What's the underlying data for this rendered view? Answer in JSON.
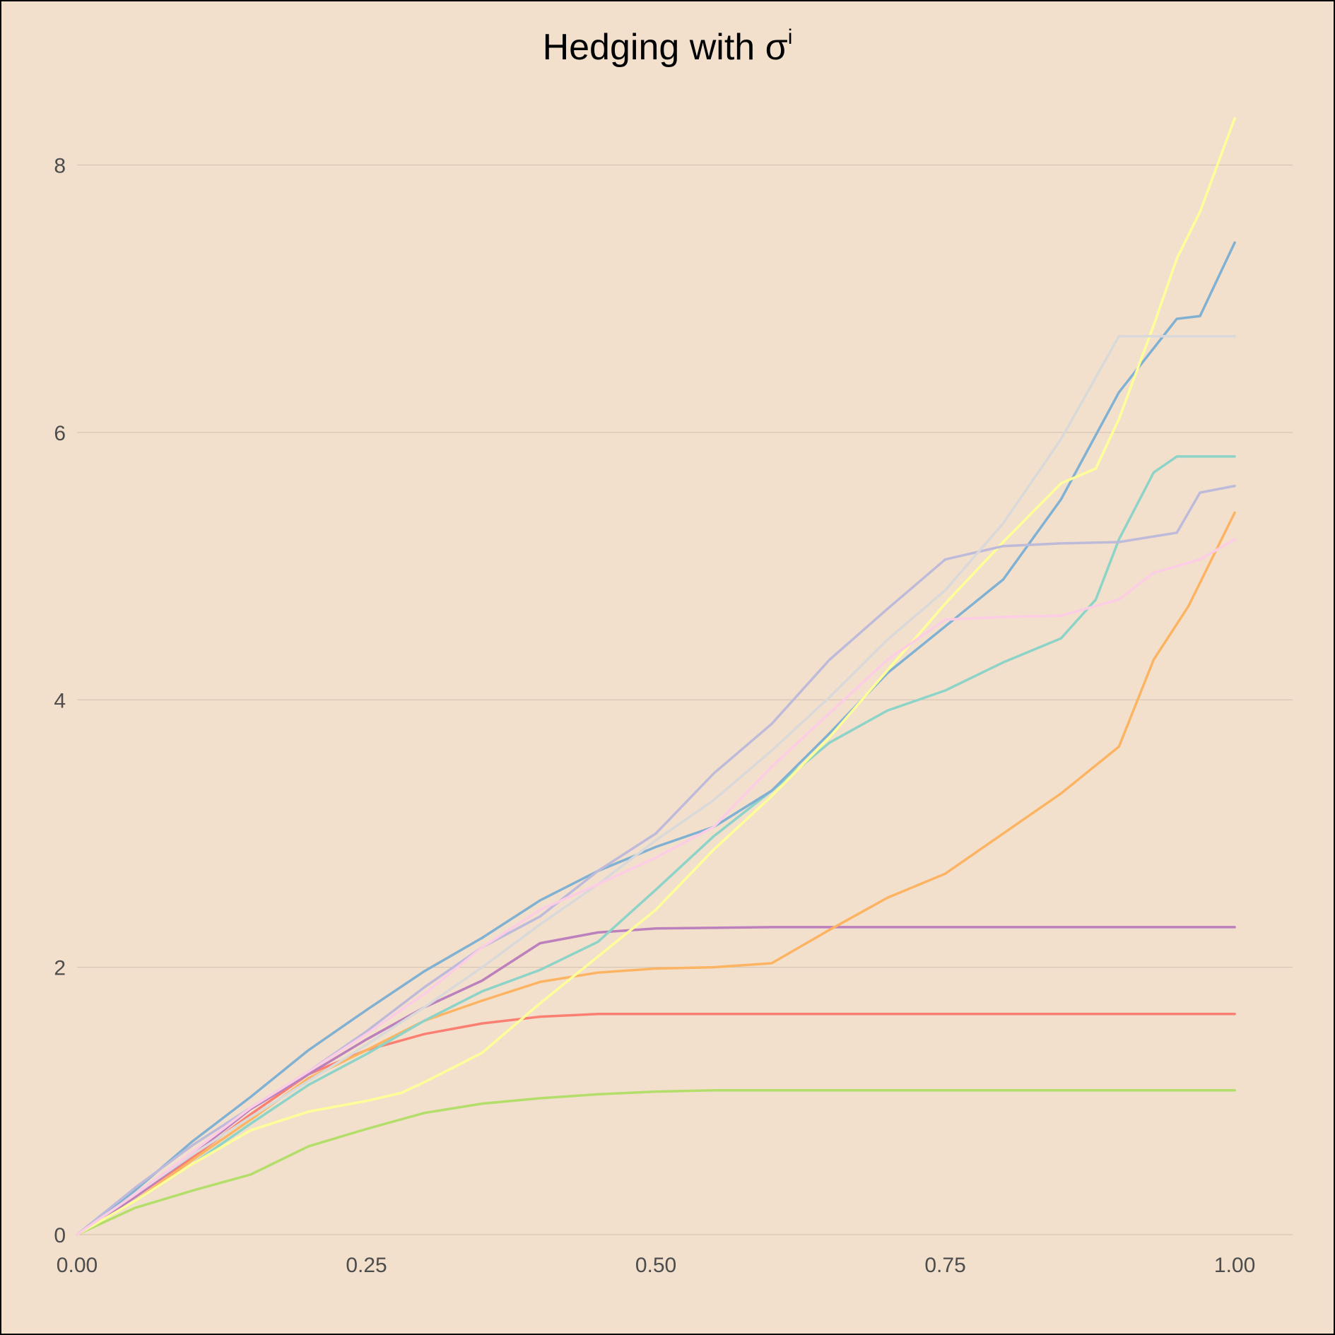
{
  "chart_data": {
    "type": "line",
    "title": "Hedging with σ",
    "title_superscript": "i",
    "xlabel": "",
    "ylabel": "",
    "xlim": [
      0,
      1.05
    ],
    "ylim": [
      0,
      8.6
    ],
    "x_ticks": [
      "0.00",
      "0.25",
      "0.50",
      "0.75",
      "1.00"
    ],
    "x_tick_values": [
      0,
      0.25,
      0.5,
      0.75,
      1.0
    ],
    "y_ticks": [
      "0",
      "2",
      "4",
      "6",
      "8"
    ],
    "y_tick_values": [
      0,
      2,
      4,
      6,
      8
    ],
    "grid": "horizontal",
    "legend": "none",
    "background": "#f2e0cd",
    "gridline_color": "#d8c6b4",
    "series": [
      {
        "color": "#b3de69",
        "points": [
          [
            0,
            0
          ],
          [
            0.05,
            0.2
          ],
          [
            0.1,
            0.33
          ],
          [
            0.15,
            0.45
          ],
          [
            0.2,
            0.66
          ],
          [
            0.25,
            0.79
          ],
          [
            0.3,
            0.91
          ],
          [
            0.35,
            0.98
          ],
          [
            0.4,
            1.02
          ],
          [
            0.45,
            1.05
          ],
          [
            0.5,
            1.07
          ],
          [
            0.55,
            1.08
          ],
          [
            0.6,
            1.08
          ],
          [
            0.8,
            1.08
          ],
          [
            1.0,
            1.08
          ]
        ]
      },
      {
        "color": "#fb8072",
        "points": [
          [
            0,
            0
          ],
          [
            0.05,
            0.28
          ],
          [
            0.1,
            0.58
          ],
          [
            0.15,
            0.9
          ],
          [
            0.2,
            1.2
          ],
          [
            0.25,
            1.38
          ],
          [
            0.3,
            1.5
          ],
          [
            0.35,
            1.58
          ],
          [
            0.4,
            1.63
          ],
          [
            0.45,
            1.65
          ],
          [
            0.5,
            1.65
          ],
          [
            0.7,
            1.65
          ],
          [
            1.0,
            1.65
          ]
        ]
      },
      {
        "color": "#bc80bd",
        "points": [
          [
            0,
            0
          ],
          [
            0.05,
            0.28
          ],
          [
            0.1,
            0.6
          ],
          [
            0.15,
            0.94
          ],
          [
            0.2,
            1.2
          ],
          [
            0.25,
            1.46
          ],
          [
            0.3,
            1.7
          ],
          [
            0.35,
            1.9
          ],
          [
            0.4,
            2.18
          ],
          [
            0.45,
            2.26
          ],
          [
            0.5,
            2.29
          ],
          [
            0.6,
            2.3
          ],
          [
            0.75,
            2.3
          ],
          [
            1.0,
            2.3
          ]
        ]
      },
      {
        "color": "#fdb462",
        "points": [
          [
            0,
            0
          ],
          [
            0.05,
            0.25
          ],
          [
            0.1,
            0.56
          ],
          [
            0.15,
            0.86
          ],
          [
            0.2,
            1.17
          ],
          [
            0.25,
            1.38
          ],
          [
            0.3,
            1.6
          ],
          [
            0.35,
            1.75
          ],
          [
            0.4,
            1.89
          ],
          [
            0.45,
            1.96
          ],
          [
            0.5,
            1.99
          ],
          [
            0.55,
            2.0
          ],
          [
            0.6,
            2.03
          ],
          [
            0.65,
            2.28
          ],
          [
            0.7,
            2.52
          ],
          [
            0.75,
            2.7
          ],
          [
            0.8,
            3.0
          ],
          [
            0.85,
            3.3
          ],
          [
            0.9,
            3.65
          ],
          [
            0.93,
            4.3
          ],
          [
            0.96,
            4.7
          ],
          [
            0.98,
            5.05
          ],
          [
            1.0,
            5.4
          ]
        ]
      },
      {
        "color": "#8dd3c7",
        "points": [
          [
            0,
            0
          ],
          [
            0.05,
            0.25
          ],
          [
            0.1,
            0.53
          ],
          [
            0.15,
            0.83
          ],
          [
            0.2,
            1.12
          ],
          [
            0.25,
            1.35
          ],
          [
            0.3,
            1.6
          ],
          [
            0.35,
            1.82
          ],
          [
            0.4,
            1.98
          ],
          [
            0.45,
            2.19
          ],
          [
            0.5,
            2.58
          ],
          [
            0.55,
            2.98
          ],
          [
            0.6,
            3.32
          ],
          [
            0.65,
            3.68
          ],
          [
            0.7,
            3.92
          ],
          [
            0.75,
            4.07
          ],
          [
            0.8,
            4.28
          ],
          [
            0.85,
            4.46
          ],
          [
            0.88,
            4.75
          ],
          [
            0.9,
            5.2
          ],
          [
            0.93,
            5.7
          ],
          [
            0.95,
            5.82
          ],
          [
            1.0,
            5.82
          ]
        ]
      },
      {
        "color": "#80b1d3",
        "points": [
          [
            0,
            0
          ],
          [
            0.05,
            0.33
          ],
          [
            0.1,
            0.7
          ],
          [
            0.15,
            1.03
          ],
          [
            0.2,
            1.38
          ],
          [
            0.25,
            1.68
          ],
          [
            0.3,
            1.97
          ],
          [
            0.35,
            2.22
          ],
          [
            0.4,
            2.5
          ],
          [
            0.45,
            2.72
          ],
          [
            0.5,
            2.9
          ],
          [
            0.55,
            3.05
          ],
          [
            0.6,
            3.32
          ],
          [
            0.65,
            3.75
          ],
          [
            0.7,
            4.2
          ],
          [
            0.75,
            4.55
          ],
          [
            0.8,
            4.9
          ],
          [
            0.85,
            5.5
          ],
          [
            0.9,
            6.3
          ],
          [
            0.95,
            6.85
          ],
          [
            0.97,
            6.87
          ],
          [
            1.0,
            7.42
          ]
        ]
      },
      {
        "color": "#ffff99",
        "points": [
          [
            0,
            0
          ],
          [
            0.05,
            0.25
          ],
          [
            0.1,
            0.53
          ],
          [
            0.15,
            0.78
          ],
          [
            0.2,
            0.92
          ],
          [
            0.25,
            1.0
          ],
          [
            0.28,
            1.06
          ],
          [
            0.3,
            1.14
          ],
          [
            0.35,
            1.36
          ],
          [
            0.4,
            1.73
          ],
          [
            0.45,
            2.08
          ],
          [
            0.5,
            2.43
          ],
          [
            0.55,
            2.88
          ],
          [
            0.6,
            3.28
          ],
          [
            0.65,
            3.72
          ],
          [
            0.7,
            4.22
          ],
          [
            0.75,
            4.72
          ],
          [
            0.8,
            5.18
          ],
          [
            0.85,
            5.62
          ],
          [
            0.88,
            5.73
          ],
          [
            0.9,
            6.1
          ],
          [
            0.93,
            6.8
          ],
          [
            0.95,
            7.3
          ],
          [
            0.97,
            7.65
          ],
          [
            1.0,
            8.35
          ]
        ]
      },
      {
        "color": "#bebada",
        "points": [
          [
            0,
            0
          ],
          [
            0.05,
            0.35
          ],
          [
            0.1,
            0.67
          ],
          [
            0.15,
            0.95
          ],
          [
            0.2,
            1.22
          ],
          [
            0.25,
            1.52
          ],
          [
            0.3,
            1.85
          ],
          [
            0.35,
            2.15
          ],
          [
            0.4,
            2.38
          ],
          [
            0.45,
            2.72
          ],
          [
            0.5,
            3.0
          ],
          [
            0.55,
            3.45
          ],
          [
            0.6,
            3.82
          ],
          [
            0.65,
            4.3
          ],
          [
            0.7,
            4.68
          ],
          [
            0.75,
            5.05
          ],
          [
            0.8,
            5.15
          ],
          [
            0.85,
            5.17
          ],
          [
            0.9,
            5.18
          ],
          [
            0.95,
            5.25
          ],
          [
            0.97,
            5.55
          ],
          [
            1.0,
            5.6
          ]
        ]
      },
      {
        "color": "#d9d9d9",
        "points": [
          [
            0,
            0
          ],
          [
            0.05,
            0.3
          ],
          [
            0.1,
            0.6
          ],
          [
            0.15,
            0.88
          ],
          [
            0.2,
            1.15
          ],
          [
            0.25,
            1.42
          ],
          [
            0.3,
            1.7
          ],
          [
            0.35,
            2.0
          ],
          [
            0.4,
            2.32
          ],
          [
            0.45,
            2.62
          ],
          [
            0.5,
            2.95
          ],
          [
            0.55,
            3.25
          ],
          [
            0.6,
            3.62
          ],
          [
            0.65,
            4.02
          ],
          [
            0.7,
            4.45
          ],
          [
            0.75,
            4.82
          ],
          [
            0.8,
            5.32
          ],
          [
            0.85,
            5.95
          ],
          [
            0.9,
            6.72
          ],
          [
            0.95,
            6.72
          ],
          [
            1.0,
            6.72
          ]
        ]
      },
      {
        "color": "#fccde5",
        "points": [
          [
            0,
            0
          ],
          [
            0.05,
            0.3
          ],
          [
            0.1,
            0.62
          ],
          [
            0.15,
            0.95
          ],
          [
            0.2,
            1.22
          ],
          [
            0.25,
            1.5
          ],
          [
            0.3,
            1.8
          ],
          [
            0.35,
            2.15
          ],
          [
            0.4,
            2.43
          ],
          [
            0.45,
            2.62
          ],
          [
            0.5,
            2.82
          ],
          [
            0.55,
            3.05
          ],
          [
            0.6,
            3.5
          ],
          [
            0.65,
            3.9
          ],
          [
            0.7,
            4.3
          ],
          [
            0.75,
            4.6
          ],
          [
            0.8,
            4.62
          ],
          [
            0.85,
            4.63
          ],
          [
            0.9,
            4.75
          ],
          [
            0.93,
            4.95
          ],
          [
            0.97,
            5.05
          ],
          [
            1.0,
            5.2
          ]
        ]
      }
    ]
  }
}
